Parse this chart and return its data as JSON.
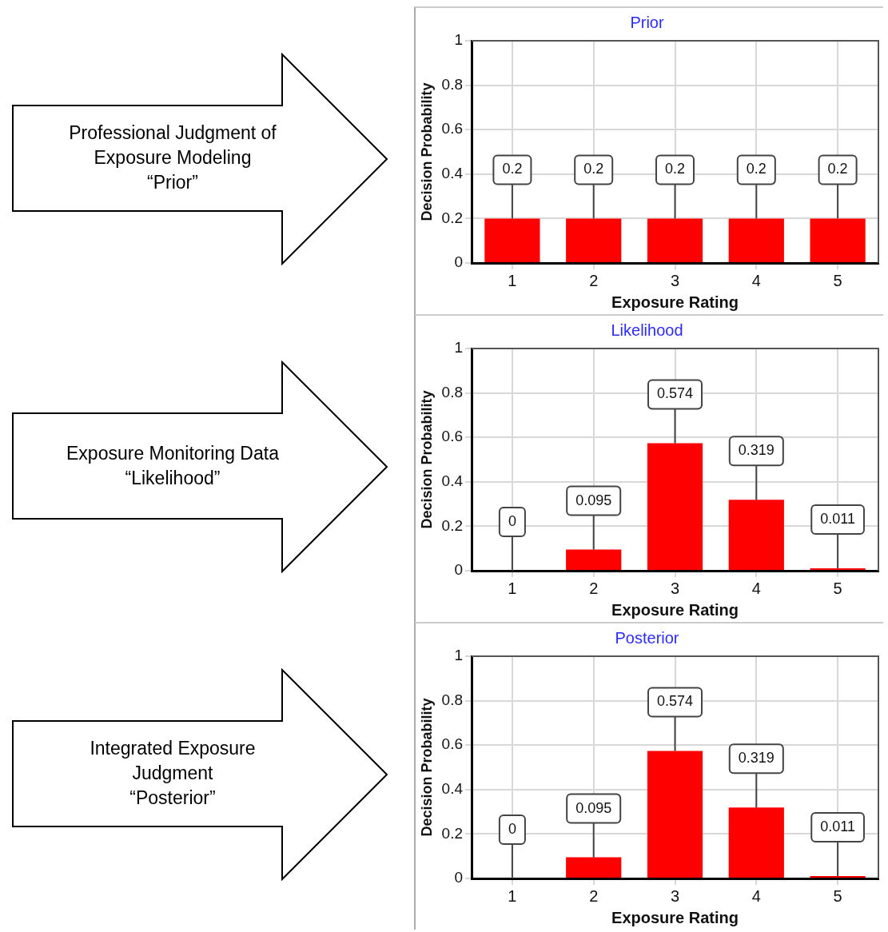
{
  "chart_data": [
    {
      "type": "bar",
      "title": "Prior",
      "xlabel": "Exposure Rating",
      "ylabel": "Decision Probability",
      "categories": [
        "1",
        "2",
        "3",
        "4",
        "5"
      ],
      "values": [
        0.2,
        0.2,
        0.2,
        0.2,
        0.2
      ],
      "color": "#ff0000",
      "ylim": [
        0,
        1
      ],
      "yticks": [
        0,
        0.2,
        0.4,
        0.6,
        0.8,
        1
      ],
      "grid": true,
      "data_labels": true,
      "annotations": [
        "Professional Judgment of\nExposure Modeling\n“Prior”"
      ]
    },
    {
      "type": "bar",
      "title": "Likelihood",
      "xlabel": "Exposure Rating",
      "ylabel": "Decision Probability",
      "categories": [
        "1",
        "2",
        "3",
        "4",
        "5"
      ],
      "values": [
        0,
        0.095,
        0.574,
        0.319,
        0.011
      ],
      "color": "#ff0000",
      "ylim": [
        0,
        1
      ],
      "yticks": [
        0,
        0.2,
        0.4,
        0.6,
        0.8,
        1
      ],
      "grid": true,
      "data_labels": true,
      "annotations": [
        "Exposure Monitoring Data\n“Likelihood”"
      ]
    },
    {
      "type": "bar",
      "title": "Posterior",
      "xlabel": "Exposure Rating",
      "ylabel": "Decision Probability",
      "categories": [
        "1",
        "2",
        "3",
        "4",
        "5"
      ],
      "values": [
        0,
        0.095,
        0.574,
        0.319,
        0.011
      ],
      "color": "#ff0000",
      "ylim": [
        0,
        1
      ],
      "yticks": [
        0,
        0.2,
        0.4,
        0.6,
        0.8,
        1
      ],
      "grid": true,
      "data_labels": true,
      "annotations": [
        "Integrated Exposure\nJudgment\n“Posterior”"
      ]
    }
  ]
}
